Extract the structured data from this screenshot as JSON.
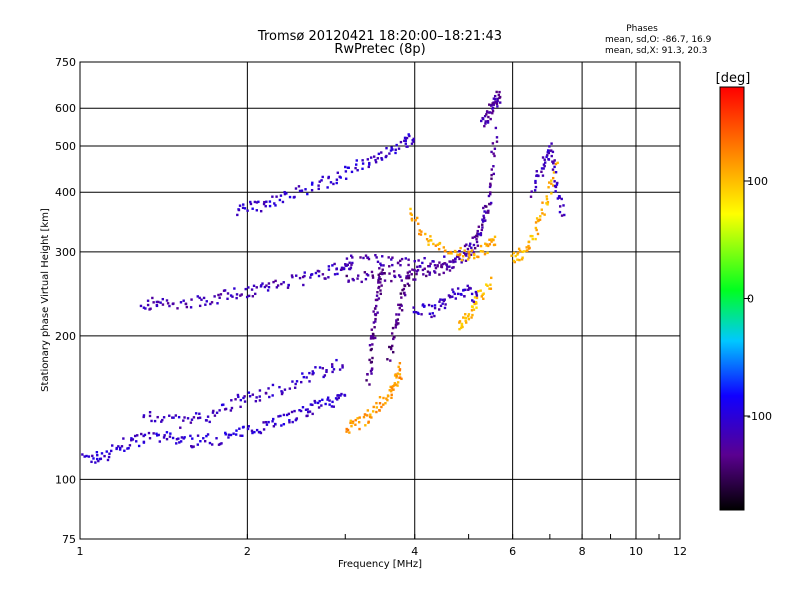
{
  "chart_data": {
    "type": "scatter",
    "title": "Tromsø 20120421 18:20:00–18:21:43",
    "subtitle": "RwPretec (8p)",
    "stats_title": "Phases",
    "stats_line1": "mean, sd,O: -86.7, 16.9",
    "stats_line2": "mean, sd,X:  91.3, 20.3",
    "xlabel": "Frequency [MHz]",
    "ylabel": "Stationary phase Virtual Height [km]",
    "x_scale": "log",
    "y_scale": "log",
    "xlim": [
      1,
      12
    ],
    "ylim": [
      75,
      750
    ],
    "x_ticks": [
      1,
      2,
      4,
      6,
      8,
      10,
      12
    ],
    "x_tick_labels": [
      "1",
      "2",
      "4",
      "6",
      "8",
      "10",
      "12"
    ],
    "y_ticks": [
      75,
      100,
      200,
      300,
      400,
      500,
      600,
      750
    ],
    "y_tick_labels": [
      "75",
      "100",
      "200",
      "300",
      "400",
      "500",
      "600",
      "750"
    ],
    "grid": true,
    "colorbar": {
      "label": "[deg]",
      "range": [
        -180,
        180
      ],
      "ticks": [
        100,
        0,
        -100
      ],
      "tick_labels": [
        "100",
        "0",
        "-100"
      ]
    },
    "traces": [
      {
        "x": [
          1.02,
          1.1,
          1.2,
          1.3,
          1.45,
          1.6,
          1.8,
          2.0,
          2.2,
          2.4,
          2.6,
          2.8,
          3.0
        ],
        "y": [
          110,
          112,
          118,
          122,
          122,
          120,
          122,
          126,
          132,
          135,
          140,
          145,
          150
        ],
        "phase": -105
      },
      {
        "x": [
          1.3,
          1.5,
          1.7,
          1.9,
          2.1,
          2.4,
          2.7,
          3.0
        ],
        "y": [
          138,
          132,
          135,
          145,
          150,
          158,
          168,
          175
        ],
        "phase": -110
      },
      {
        "x": [
          1.3,
          1.4,
          1.6,
          1.8,
          2.0,
          2.2,
          2.5,
          2.8,
          3.0,
          3.1
        ],
        "y": [
          235,
          232,
          236,
          242,
          248,
          255,
          262,
          272,
          280,
          288
        ],
        "phase": -115
      },
      {
        "x": [
          1.9,
          2.1,
          2.3,
          2.6,
          2.9,
          3.2,
          3.5,
          3.8,
          4.0
        ],
        "y": [
          365,
          375,
          390,
          410,
          430,
          455,
          480,
          505,
          520
        ],
        "phase": -105
      },
      {
        "x": [
          3.0,
          3.4,
          3.8,
          4.2,
          4.6,
          5.0,
          5.3,
          5.5,
          5.6
        ],
        "y": [
          268,
          265,
          266,
          270,
          280,
          300,
          340,
          420,
          540
        ],
        "phase": -130
      },
      {
        "x": [
          3.2,
          3.6,
          4.0,
          4.4,
          4.8,
          5.2,
          5.5
        ],
        "y": [
          290,
          285,
          282,
          285,
          295,
          320,
          380
        ],
        "phase": -120
      },
      {
        "x": [
          3.3,
          3.35,
          3.4,
          3.45,
          3.5
        ],
        "y": [
          160,
          190,
          220,
          250,
          280
        ],
        "phase": -135
      },
      {
        "x": [
          3.6,
          3.7,
          3.8,
          3.9
        ],
        "y": [
          180,
          210,
          240,
          270
        ],
        "phase": -140
      },
      {
        "x": [
          3.9,
          4.2,
          4.6,
          5.0,
          5.4,
          5.6
        ],
        "y": [
          360,
          320,
          300,
          295,
          305,
          320
        ],
        "phase": 110
      },
      {
        "x": [
          3.0,
          3.2,
          3.4,
          3.6,
          3.7,
          3.8
        ],
        "y": [
          128,
          132,
          140,
          150,
          160,
          175
        ],
        "phase": 115
      },
      {
        "x": [
          6.0,
          6.3,
          6.6,
          6.9,
          7.2
        ],
        "y": [
          290,
          300,
          330,
          380,
          460
        ],
        "phase": 105
      },
      {
        "x": [
          4.8,
          5.0,
          5.2,
          5.5
        ],
        "y": [
          210,
          220,
          240,
          260
        ],
        "phase": 100
      },
      {
        "x": [
          5.3,
          5.45,
          5.6,
          5.7
        ],
        "y": [
          560,
          590,
          620,
          640
        ],
        "phase": -125
      },
      {
        "x": [
          4.0,
          4.3,
          4.6,
          4.9,
          5.2
        ],
        "y": [
          230,
          225,
          240,
          250,
          240
        ],
        "phase": -110
      },
      {
        "x": [
          6.5,
          6.8,
          7.0,
          7.2,
          7.4
        ],
        "y": [
          400,
          450,
          500,
          420,
          360
        ],
        "phase": -115
      }
    ]
  }
}
